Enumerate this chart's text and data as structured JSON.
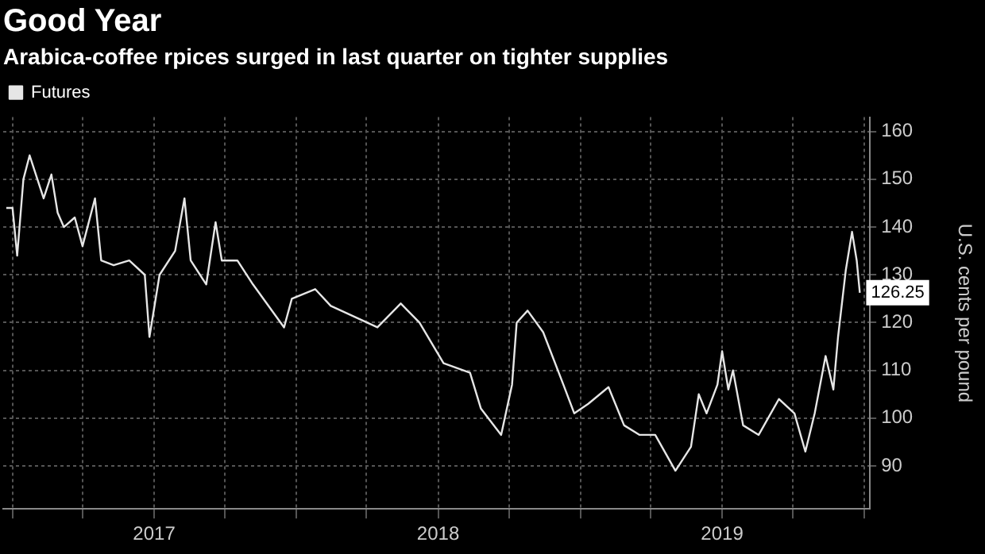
{
  "chart_data": {
    "type": "line",
    "title": "Good Year",
    "subtitle": "Arabica-coffee rpices surged in last quarter on tighter supplies",
    "ylabel": "U.S. cents per pound",
    "x": [
      "2016-12-24",
      "2017-01-01",
      "2017-01-07",
      "2017-01-15",
      "2017-01-23",
      "2017-01-31",
      "2017-02-10",
      "2017-02-20",
      "2017-02-28",
      "2017-03-08",
      "2017-03-22",
      "2017-04-01",
      "2017-04-17",
      "2017-04-25",
      "2017-05-11",
      "2017-05-31",
      "2017-06-20",
      "2017-06-26",
      "2017-07-09",
      "2017-07-29",
      "2017-08-10",
      "2017-08-18",
      "2017-09-07",
      "2017-09-19",
      "2017-09-27",
      "2017-10-17",
      "2017-11-06",
      "2017-12-16",
      "2017-12-26",
      "2018-01-25",
      "2018-02-14",
      "2018-03-06",
      "2018-04-15",
      "2018-05-15",
      "2018-06-08",
      "2018-07-09",
      "2018-08-12",
      "2018-08-26",
      "2018-09-21",
      "2018-10-05",
      "2018-10-11",
      "2018-10-25",
      "2018-11-14",
      "2018-12-10",
      "2018-12-24",
      "2019-01-11",
      "2019-02-06",
      "2019-02-26",
      "2019-03-18",
      "2019-04-07",
      "2019-05-03",
      "2019-05-23",
      "2019-06-02",
      "2019-06-12",
      "2019-06-26",
      "2019-07-02",
      "2019-07-10",
      "2019-07-16",
      "2019-07-29",
      "2019-08-18",
      "2019-09-13",
      "2019-10-03",
      "2019-10-17",
      "2019-10-29",
      "2019-11-12",
      "2019-11-22",
      "2019-11-28",
      "2019-12-08",
      "2019-12-16",
      "2019-12-22",
      "2019-12-26"
    ],
    "series": [
      {
        "name": "Futures",
        "color": "#e6e6e6",
        "values": [
          144,
          144,
          134,
          150,
          155,
          151,
          146,
          151,
          143,
          140,
          142,
          136,
          146,
          133,
          132,
          133,
          130,
          117,
          130,
          135,
          146,
          133,
          128,
          141,
          133,
          133,
          128,
          119,
          125,
          127,
          123.5,
          122,
          119,
          124,
          120,
          111.5,
          109.5,
          102,
          96.5,
          107,
          120,
          122.5,
          118,
          107,
          101,
          103,
          106.5,
          98.5,
          96.5,
          96.5,
          89,
          94,
          105,
          101,
          107,
          114,
          106,
          110,
          98.5,
          96.5,
          104,
          101,
          93,
          101,
          113,
          106,
          117,
          131,
          139,
          133,
          126.25
        ]
      }
    ],
    "annotations": [
      {
        "text": "126.25",
        "x": "2019-12-26",
        "y": 126.25
      }
    ],
    "xlim": [
      "2016-12-20",
      "2020-01-08"
    ],
    "xticks": [
      {
        "value": "2017-01-01",
        "label": null
      },
      {
        "value": "2017-04-01",
        "label": null
      },
      {
        "value": "2017-07-02",
        "label": "2017"
      },
      {
        "value": "2017-10-01",
        "label": null
      },
      {
        "value": "2018-01-01",
        "label": null
      },
      {
        "value": "2018-04-01",
        "label": null
      },
      {
        "value": "2018-07-02",
        "label": "2018"
      },
      {
        "value": "2018-10-01",
        "label": null
      },
      {
        "value": "2019-01-01",
        "label": null
      },
      {
        "value": "2019-04-01",
        "label": null
      },
      {
        "value": "2019-07-02",
        "label": "2019"
      },
      {
        "value": "2019-10-01",
        "label": null
      },
      {
        "value": "2020-01-01",
        "label": null
      }
    ],
    "ylim": [
      81,
      163
    ],
    "yticks": [
      90,
      100,
      110,
      120,
      130,
      140,
      150,
      160
    ],
    "grid": true,
    "legend": "top left",
    "marker": "none",
    "line_style": "solid"
  }
}
